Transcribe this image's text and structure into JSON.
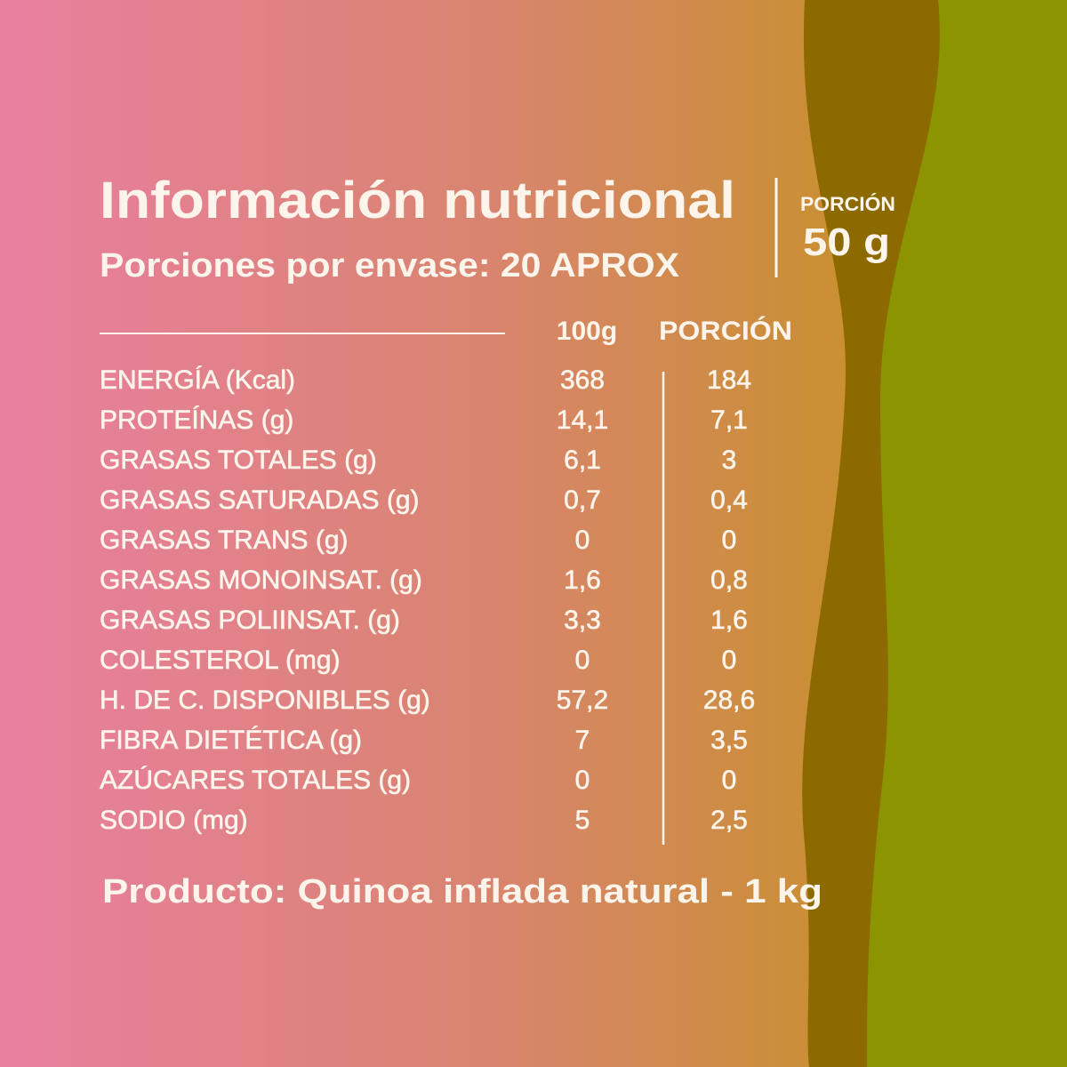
{
  "header": {
    "title": "Información nutricional",
    "subtitle": "Porciones por envase: 20 APROX"
  },
  "portion": {
    "label": "PORCIÓN",
    "value": "50 g"
  },
  "table": {
    "columns": [
      "100g",
      "PORCIÓN"
    ],
    "rows": [
      [
        "ENERGÍA (Kcal)",
        "368",
        "184"
      ],
      [
        "PROTEÍNAS (g)",
        "14,1",
        "7,1"
      ],
      [
        "GRASAS TOTALES (g)",
        "6,1",
        "3"
      ],
      [
        "GRASAS SATURADAS (g)",
        "0,7",
        "0,4"
      ],
      [
        "GRASAS TRANS (g)",
        "0",
        "0"
      ],
      [
        "GRASAS MONOINSAT. (g)",
        "1,6",
        "0,8"
      ],
      [
        "GRASAS POLIINSAT. (g)",
        "3,3",
        "1,6"
      ],
      [
        "COLESTEROL (mg)",
        "0",
        "0"
      ],
      [
        "H. DE C. DISPONIBLES (g)",
        "57,2",
        "28,6"
      ],
      [
        "FIBRA DIETÉTICA (g)",
        "7",
        "3,5"
      ],
      [
        "AZÚCARES TOTALES (g)",
        "0",
        "0"
      ],
      [
        "SODIO (mg)",
        "5",
        "2,5"
      ]
    ]
  },
  "footer": {
    "product": "Producto: Quinoa inflada natural - 1 kg"
  }
}
